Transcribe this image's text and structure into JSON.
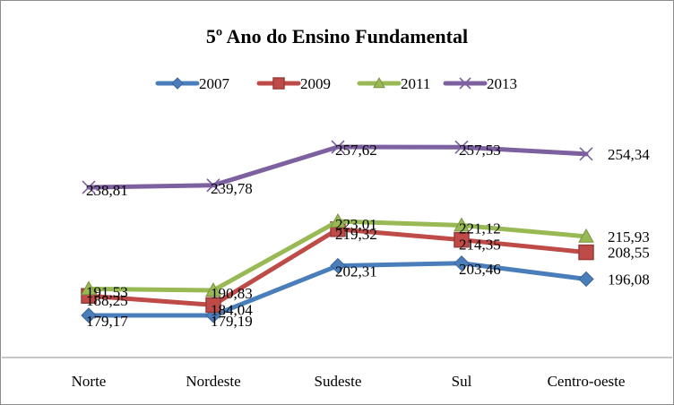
{
  "chart_data": {
    "type": "line",
    "title": "5º Ano do Ensino Fundamental",
    "categories": [
      "Norte",
      "Nordeste",
      "Sudeste",
      "Sul",
      "Centro-oeste"
    ],
    "series": [
      {
        "name": "2007",
        "color": "#4A7EBB",
        "marker": "diamond",
        "values": [
          179.17,
          179.19,
          202.31,
          203.46,
          196.08
        ],
        "labels": [
          "179,17",
          "179,19",
          "202,31",
          "203,46",
          "196,08"
        ]
      },
      {
        "name": "2009",
        "color": "#BE4B48",
        "marker": "square",
        "values": [
          188.25,
          184.04,
          219.32,
          214.35,
          208.55
        ],
        "labels": [
          "188,25",
          "184,04",
          "219,32",
          "214,35",
          "208,55"
        ]
      },
      {
        "name": "2011",
        "color": "#98B954",
        "marker": "triangle",
        "values": [
          191.53,
          190.83,
          223.01,
          221.12,
          215.93
        ],
        "labels": [
          "191,53",
          "190,83",
          "223,01",
          "221,12",
          "215,93"
        ]
      },
      {
        "name": "2013",
        "color": "#7D60A0",
        "marker": "x",
        "values": [
          238.81,
          239.78,
          257.62,
          257.53,
          254.34
        ],
        "labels": [
          "238,81",
          "239,78",
          "257,62",
          "257,53",
          "254,34"
        ]
      }
    ],
    "xlabel": "",
    "ylabel": "",
    "y_axis_visible": false,
    "grid": false,
    "legend": "top"
  }
}
